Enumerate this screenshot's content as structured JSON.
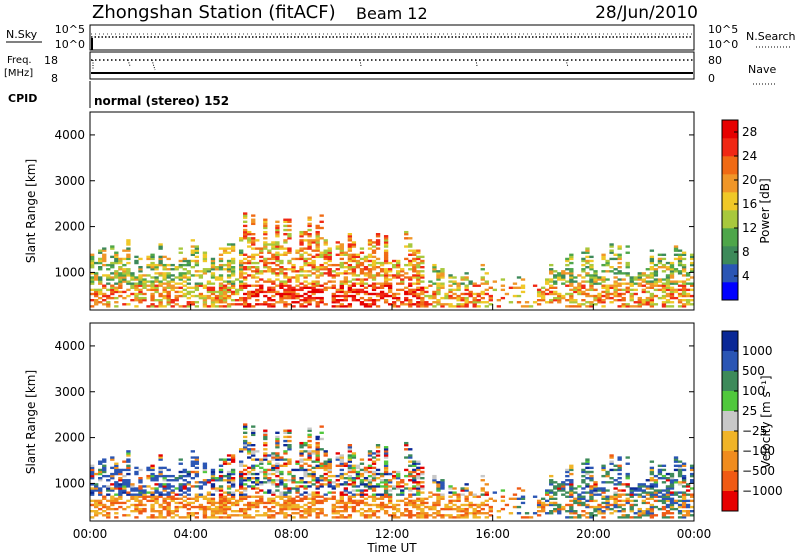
{
  "header": {
    "station": "Zhongshan Station (fitACF)",
    "beam": "Beam 12",
    "date": "28/Jun/2010"
  },
  "status_panels": {
    "nsky_label": "N.Sky",
    "nsky_ticks": [
      "10^5",
      "10^0"
    ],
    "nsearch_label": "N.Search",
    "nsearch_ticks": [
      "10^5",
      "10^0"
    ],
    "freq_label": "Freq.",
    "freq_unit": "[MHz]",
    "freq_ticks": [
      "18",
      "8"
    ],
    "nave_label": "Nave",
    "nave_ticks": [
      "80",
      "0"
    ],
    "cpid_label": "CPID",
    "cpid_value": "normal (stereo) 152"
  },
  "colors": {
    "power": [
      "#0000ff",
      "#2a55b4",
      "#3d8a5a",
      "#4ea64a",
      "#a8c83c",
      "#f0c828",
      "#f09628",
      "#f06a14",
      "#f02814",
      "#e60000"
    ],
    "velocity": [
      "#e60000",
      "#f05a14",
      "#f08c1e",
      "#f0b428",
      "#c8c8c8",
      "#50c83c",
      "#3d8a5a",
      "#2a55b4",
      "#0a2896"
    ]
  },
  "chart_data": [
    {
      "type": "heatmap",
      "panel": "power",
      "ylabel": "Slant Range [km]",
      "yticks": [
        "1000",
        "2000",
        "3000",
        "4000"
      ],
      "ylim": [
        180,
        4500
      ],
      "xlim": [
        "00:00",
        "24:00"
      ],
      "colorbar_label": "Power [dB]",
      "colorbar_ticks": [
        "4",
        "8",
        "12",
        "16",
        "20",
        "24",
        "28"
      ],
      "colorbar_range": [
        0,
        30
      ]
    },
    {
      "type": "heatmap",
      "panel": "velocity",
      "ylabel": "Slant Range [km]",
      "yticks": [
        "1000",
        "2000",
        "3000",
        "4000"
      ],
      "ylim": [
        180,
        4500
      ],
      "xlim": [
        "00:00",
        "24:00"
      ],
      "xticks": [
        "00:00",
        "04:00",
        "08:00",
        "12:00",
        "16:00",
        "20:00",
        "00:00"
      ],
      "xlabel": "Time UT",
      "colorbar_label": "Velocity [m s⁻¹]",
      "colorbar_ticks": [
        "1000",
        "500",
        "100",
        "25",
        "−25",
        "−100",
        "−500",
        "−1000"
      ]
    }
  ]
}
